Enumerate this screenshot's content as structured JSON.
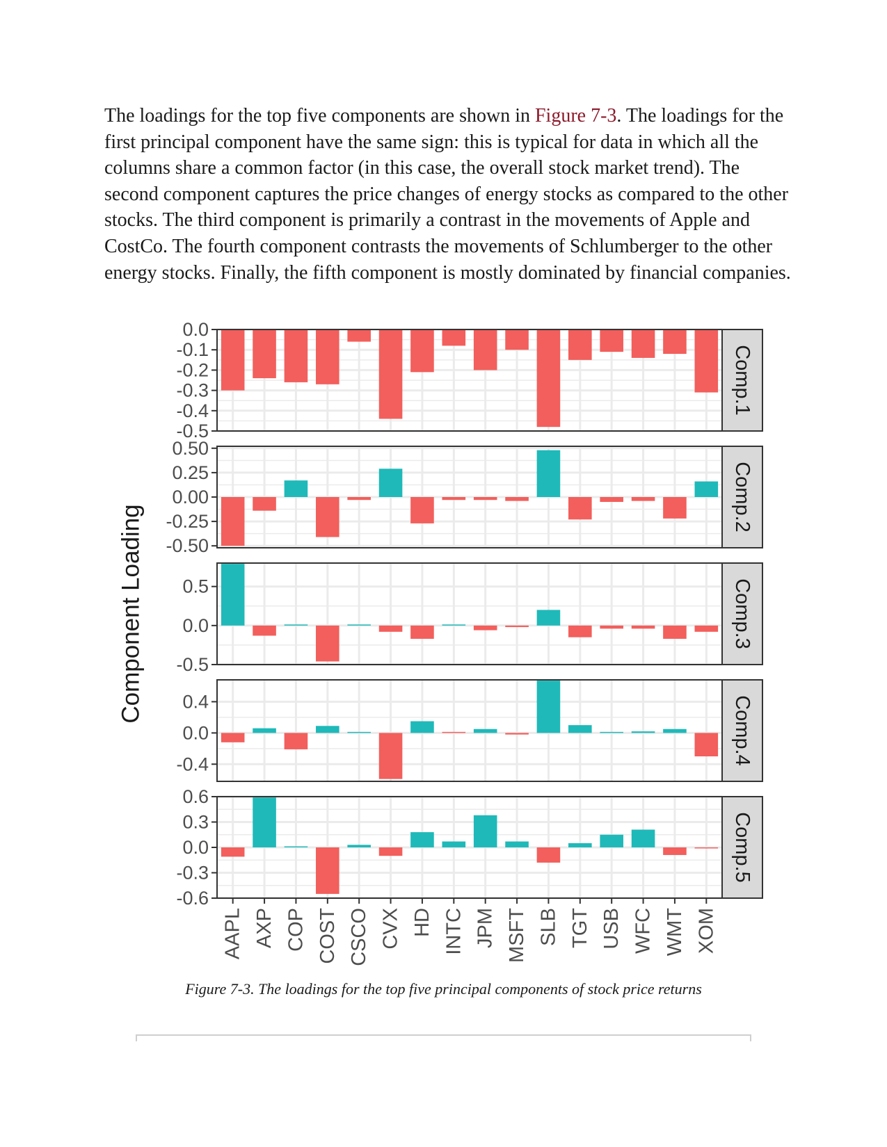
{
  "paragraph": {
    "part1": "The loadings for the top five components are shown in ",
    "xref": "Figure 7-3",
    "part2": ". The loadings for the first principal component have the same sign: this is typical for data in which all the columns share a common factor (in this case, the overall stock market trend). The second component captures the price changes of energy stocks as compared to the other stocks. The third component is primarily a contrast in the movements of Apple and CostCo. The fourth component contrasts the movements of Schlumberger to the other energy stocks. Finally, the fifth component is mostly dominated by financial companies."
  },
  "caption": "Figure 7-3. The loadings for the top five principal components of stock price returns",
  "chart_data": {
    "type": "bar",
    "ylabel": "Component Loading",
    "categories": [
      "AAPL",
      "AXP",
      "COP",
      "COST",
      "CSCO",
      "CVX",
      "HD",
      "INTC",
      "JPM",
      "MSFT",
      "SLB",
      "TGT",
      "USB",
      "WFC",
      "WMT",
      "XOM"
    ],
    "colors": {
      "positive": "#1fb9b9",
      "negative": "#f25f5c",
      "grid": "#ebebeb",
      "strip": "#d9d9d9"
    },
    "panels": [
      {
        "name": "Comp.1",
        "ylim": [
          -0.5,
          0.0
        ],
        "ticks": [
          "0.0",
          "-0.1",
          "-0.2",
          "-0.3",
          "-0.4",
          "-0.5"
        ],
        "tick_values": [
          0.0,
          -0.1,
          -0.2,
          -0.3,
          -0.4,
          -0.5
        ],
        "values": [
          -0.3,
          -0.24,
          -0.26,
          -0.27,
          -0.06,
          -0.44,
          -0.21,
          -0.08,
          -0.2,
          -0.1,
          -0.48,
          -0.15,
          -0.11,
          -0.14,
          -0.12,
          -0.31
        ]
      },
      {
        "name": "Comp.2",
        "ylim": [
          -0.52,
          0.52
        ],
        "ticks": [
          "0.50",
          "0.25",
          "0.00",
          "-0.25",
          "-0.50"
        ],
        "tick_values": [
          0.5,
          0.25,
          0.0,
          -0.25,
          -0.5
        ],
        "values": [
          -0.5,
          -0.14,
          0.17,
          -0.41,
          -0.03,
          0.29,
          -0.27,
          -0.03,
          -0.03,
          -0.04,
          0.48,
          -0.23,
          -0.05,
          -0.04,
          -0.22,
          0.16
        ]
      },
      {
        "name": "Comp.3",
        "ylim": [
          -0.5,
          0.8
        ],
        "ticks": [
          "0.5",
          "0.0",
          "-0.5"
        ],
        "tick_values": [
          0.5,
          0.0,
          -0.5
        ],
        "values": [
          0.79,
          -0.13,
          0.01,
          -0.46,
          0.01,
          -0.08,
          -0.17,
          0.01,
          -0.06,
          -0.02,
          0.2,
          -0.15,
          -0.04,
          -0.04,
          -0.17,
          -0.08
        ]
      },
      {
        "name": "Comp.4",
        "ylim": [
          -0.62,
          0.68
        ],
        "ticks": [
          "0.4",
          "0.0",
          "-0.4"
        ],
        "tick_values": [
          0.4,
          0.0,
          -0.4
        ],
        "values": [
          -0.12,
          0.06,
          -0.21,
          0.09,
          0.01,
          -0.59,
          0.15,
          0.0,
          0.05,
          -0.02,
          0.67,
          0.1,
          0.01,
          0.02,
          0.05,
          -0.3
        ]
      },
      {
        "name": "Comp.5",
        "ylim": [
          -0.6,
          0.6
        ],
        "ticks": [
          "0.6",
          "0.3",
          "0.0",
          "-0.3",
          "-0.6"
        ],
        "tick_values": [
          0.6,
          0.3,
          0.0,
          -0.3,
          -0.6
        ],
        "values": [
          -0.11,
          0.59,
          0.01,
          -0.55,
          0.03,
          -0.1,
          0.18,
          0.07,
          0.38,
          0.07,
          -0.18,
          0.05,
          0.15,
          0.21,
          -0.09,
          -0.01
        ]
      }
    ]
  }
}
